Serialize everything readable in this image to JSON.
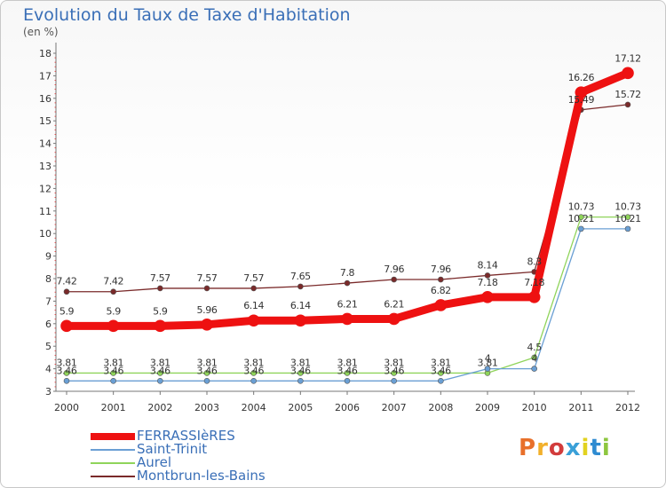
{
  "header": {
    "title": "Evolution du Taux de Taxe d'Habitation",
    "unit": "(en %)"
  },
  "logo": {
    "text": "Proxiti",
    "colors": [
      "#e8702a",
      "#f2b02b",
      "#d23c3c",
      "#3aa0d8",
      "#e2d21f",
      "#2e8bd1",
      "#8dc63f"
    ]
  },
  "chart_data": {
    "type": "line",
    "x": [
      "2000",
      "2001",
      "2002",
      "2003",
      "2004",
      "2005",
      "2006",
      "2007",
      "2008",
      "2009",
      "2010",
      "2011",
      "2012"
    ],
    "ylim": [
      3,
      18
    ],
    "yticks": [
      3,
      4,
      5,
      6,
      7,
      8,
      9,
      10,
      11,
      12,
      13,
      14,
      15,
      16,
      17,
      18
    ],
    "grid": false,
    "legend_position": "bottom-left",
    "series": [
      {
        "name": "Montbrun-les-Bains",
        "color": "#7a2a2a",
        "width": 1.3,
        "values": [
          7.42,
          7.42,
          7.57,
          7.57,
          7.57,
          7.65,
          7.8,
          7.96,
          7.96,
          8.14,
          8.3,
          15.49,
          15.72
        ],
        "labels": [
          "7.42",
          "7.42",
          "7.57",
          "7.57",
          "7.57",
          "7.65",
          "7.8",
          "7.96",
          "7.96",
          "8.14",
          "8.3",
          "15.49",
          "15.72"
        ]
      },
      {
        "name": "Aurel",
        "color": "#8fd45a",
        "width": 1.3,
        "values": [
          3.81,
          3.81,
          3.81,
          3.81,
          3.81,
          3.81,
          3.81,
          3.81,
          3.81,
          3.81,
          4.5,
          10.73,
          10.73
        ],
        "labels": [
          "3.81",
          "3.81",
          "3.81",
          "3.81",
          "3.81",
          "3.81",
          "3.81",
          "3.81",
          "3.81",
          "3.81",
          "4.5",
          "10.73",
          "10.73"
        ]
      },
      {
        "name": "Saint-Trinit",
        "color": "#6a9fd4",
        "width": 1.3,
        "values": [
          3.46,
          3.46,
          3.46,
          3.46,
          3.46,
          3.46,
          3.46,
          3.46,
          3.46,
          4,
          4,
          10.21,
          10.21
        ],
        "labels": [
          "3.46",
          "3.46",
          "3.46",
          "3.46",
          "3.46",
          "3.46",
          "3.46",
          "3.46",
          "3.46",
          "4",
          "4",
          "10.21",
          "10.21"
        ]
      },
      {
        "name": "FERRASSIèRES",
        "color": "#ee1111",
        "width": 9,
        "values": [
          5.9,
          5.9,
          5.9,
          5.96,
          6.14,
          6.14,
          6.21,
          6.21,
          6.82,
          7.18,
          7.18,
          16.26,
          17.12
        ],
        "labels": [
          "5.9",
          "5.9",
          "5.9",
          "5.96",
          "6.14",
          "6.14",
          "6.21",
          "6.21",
          "6.82",
          "7.18",
          "7.18",
          "16.26",
          "17.12"
        ]
      }
    ],
    "legend_order": [
      "FERRASSIèRES",
      "Saint-Trinit",
      "Aurel",
      "Montbrun-les-Bains"
    ]
  }
}
